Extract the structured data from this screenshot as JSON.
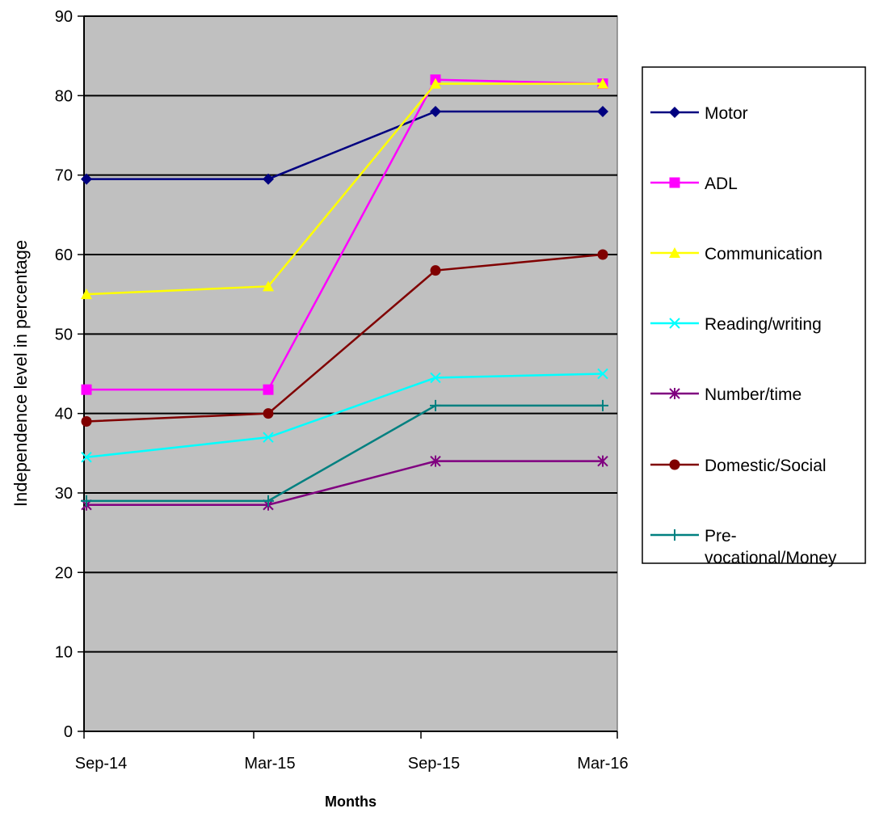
{
  "chart_data": {
    "type": "line",
    "categories": [
      "Sep-14",
      "Mar-15",
      "Sep-15",
      "Mar-16"
    ],
    "xlabel": "Months",
    "ylabel": "Independence level in percentage",
    "ylim": [
      0,
      90
    ],
    "yticks": [
      0,
      10,
      20,
      30,
      40,
      50,
      60,
      70,
      80,
      90
    ],
    "grid": "horizontal",
    "plot_background": "#c0c0c0",
    "legend_position": "right",
    "series": [
      {
        "name": "Motor",
        "values": [
          69.5,
          69.5,
          78,
          78
        ],
        "color": "#000080",
        "marker": "diamond"
      },
      {
        "name": "ADL",
        "values": [
          43,
          43,
          82,
          81.5
        ],
        "color": "#ff00ff",
        "marker": "square"
      },
      {
        "name": "Communication",
        "values": [
          55,
          56,
          81.5,
          81.5
        ],
        "color": "#ffff00",
        "marker": "triangle"
      },
      {
        "name": "Reading/writing",
        "values": [
          34.5,
          37,
          44.5,
          45
        ],
        "color": "#00ffff",
        "marker": "x"
      },
      {
        "name": "Number/time",
        "values": [
          28.5,
          28.5,
          34,
          34
        ],
        "color": "#800080",
        "marker": "star"
      },
      {
        "name": "Domestic/Social",
        "values": [
          39,
          40,
          58,
          60
        ],
        "color": "#800000",
        "marker": "circle"
      },
      {
        "name": "Pre-vocational/Money",
        "legend_lines": [
          "Pre-",
          "vocational/Money"
        ],
        "values": [
          29,
          29,
          41,
          41
        ],
        "color": "#008080",
        "marker": "plus"
      }
    ]
  }
}
